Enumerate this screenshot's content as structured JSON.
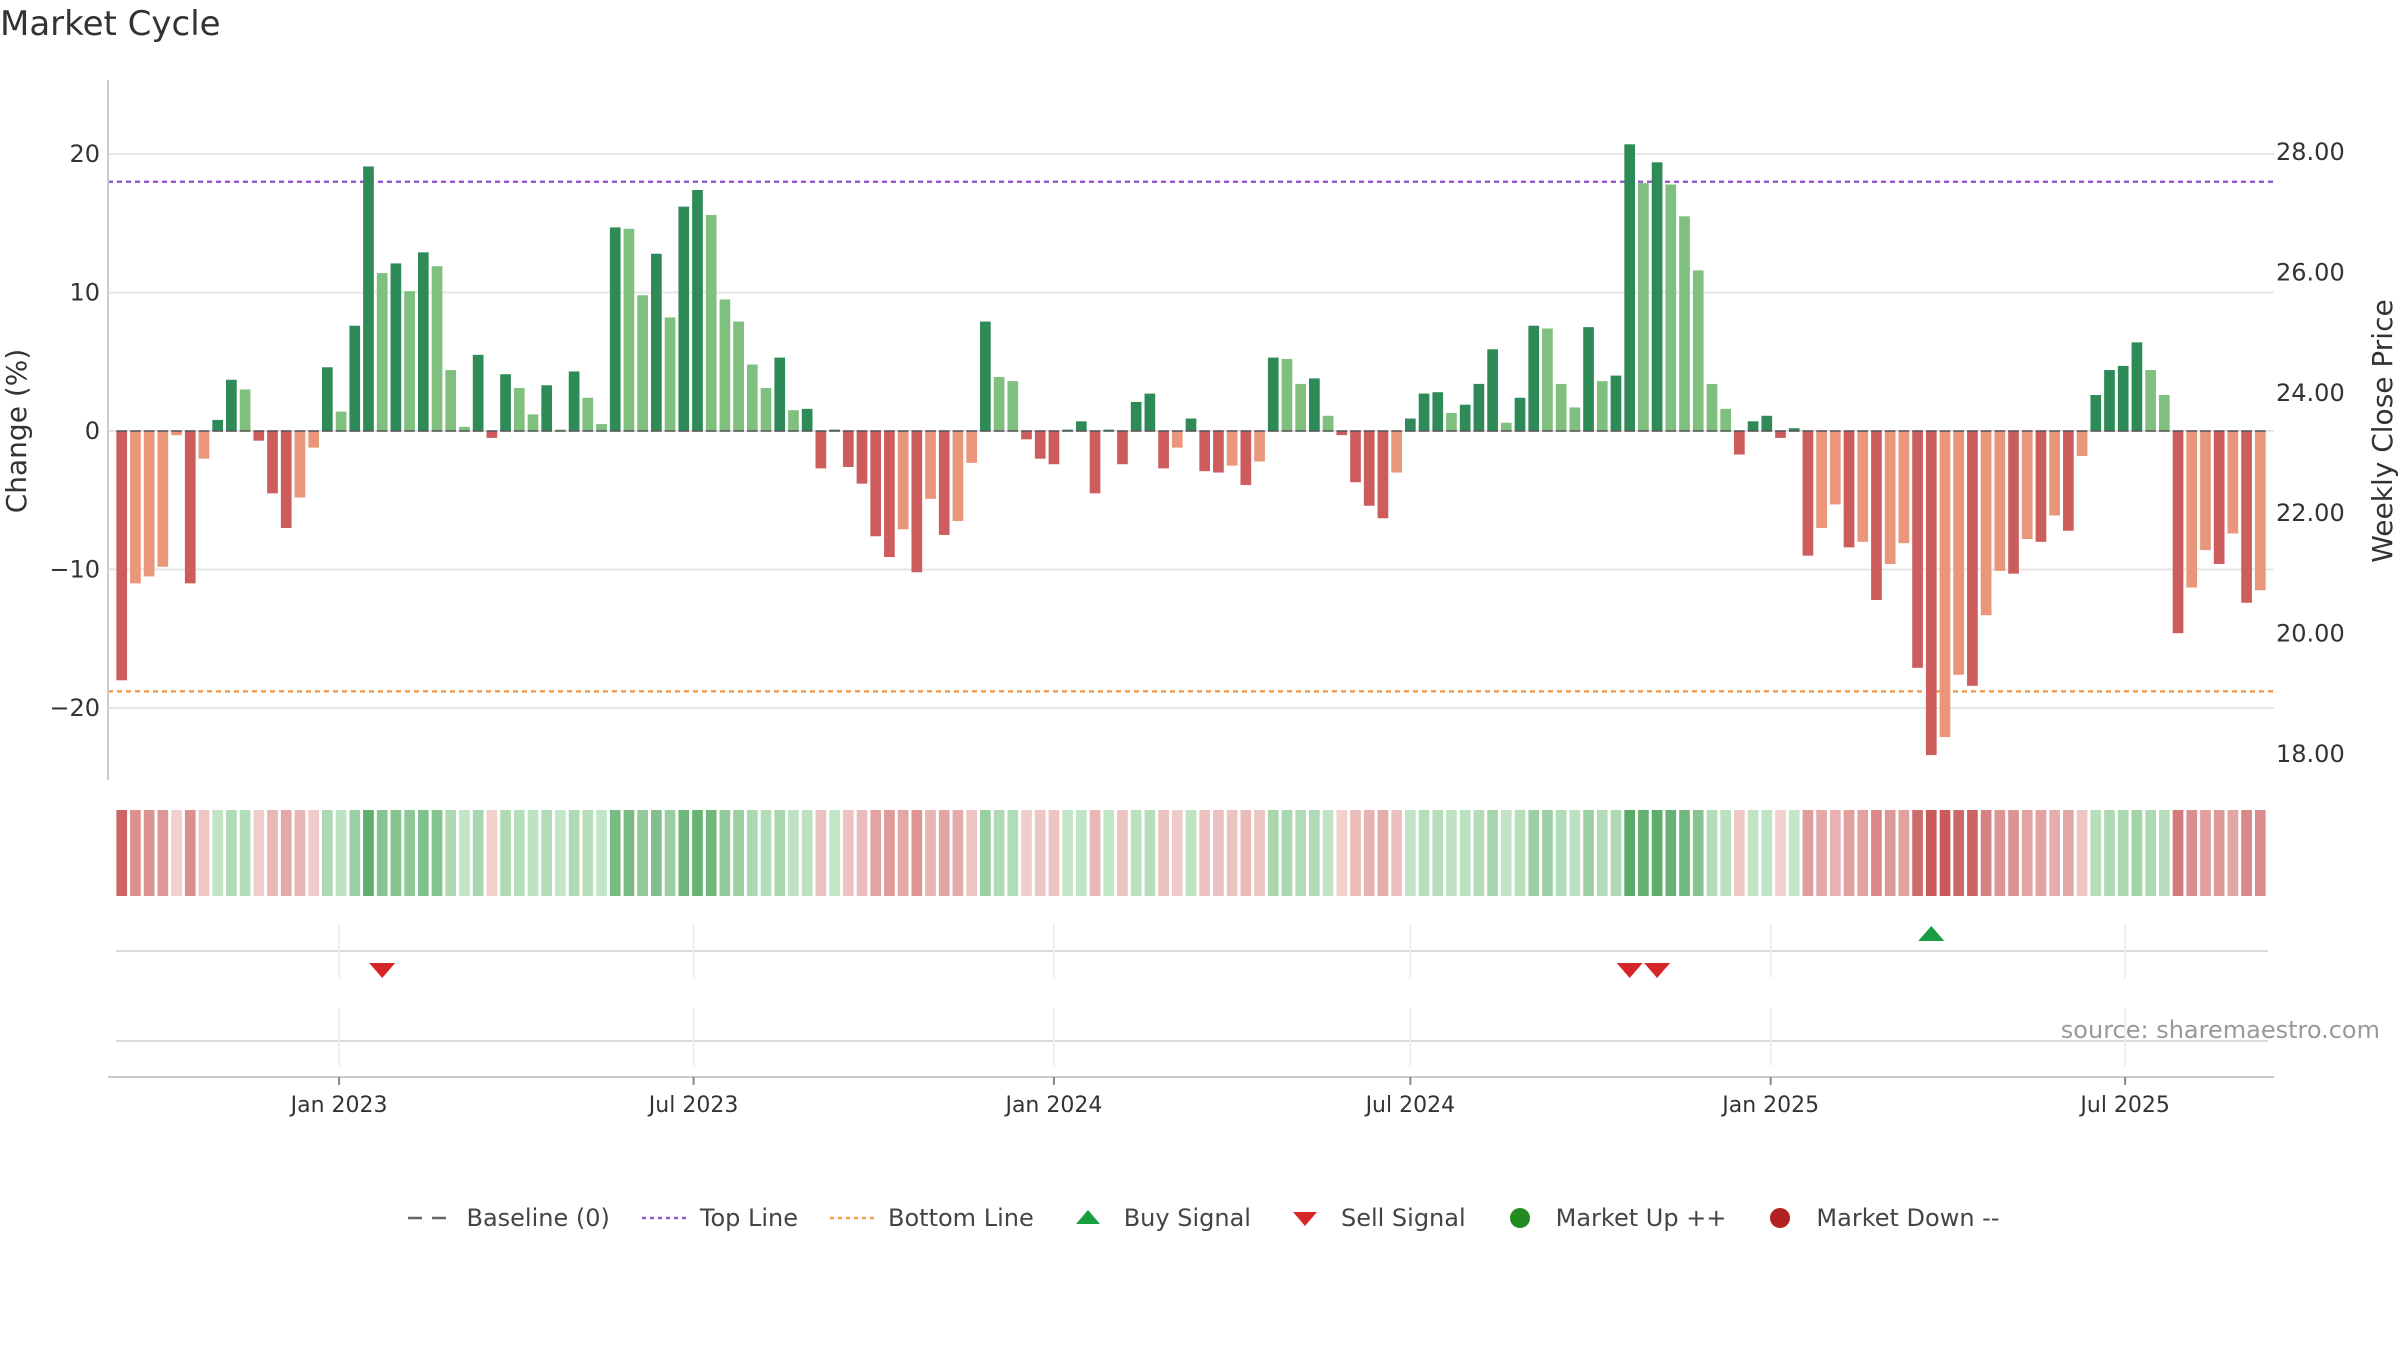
{
  "chart_data": {
    "type": "bar",
    "title": "Market Cycle",
    "ylabel": "Change (%)",
    "y2label": "Weekly Close Price",
    "ylim": [
      -25,
      25
    ],
    "y2lim": [
      17.5,
      29.3
    ],
    "yticks": [
      -20,
      -10,
      0,
      10,
      20
    ],
    "yticklabels": [
      "−20",
      "−10",
      "0",
      "10",
      "20"
    ],
    "y2ticks": [
      18,
      20,
      22,
      24,
      26,
      28
    ],
    "y2ticklabels": [
      "18.00",
      "20.00",
      "22.00",
      "24.00",
      "26.00",
      "28.00"
    ],
    "top_line": 18,
    "bottom_line": -18.8,
    "x_start": "2022-09-05",
    "x_end": "2025-09-15",
    "week_start": "2022-09-12",
    "xticks": [
      "2023-01-01",
      "2023-07-01",
      "2024-01-01",
      "2024-07-01",
      "2025-01-01",
      "2025-07-01"
    ],
    "xticklabels": [
      "Jan 2023",
      "Jul 2023",
      "Jan 2024",
      "Jul 2024",
      "Jan 2025",
      "Jul 2025"
    ],
    "values": [
      -18,
      -11,
      -10.5,
      -9.8,
      -0.3,
      -11,
      -2,
      0.8,
      3.7,
      3,
      -0.7,
      -4.5,
      -7,
      -4.8,
      -1.2,
      4.6,
      1.4,
      7.6,
      19.1,
      11.4,
      12.1,
      10.1,
      12.9,
      11.9,
      4.4,
      0.3,
      5.5,
      -0.5,
      4.1,
      3.1,
      1.2,
      3.3,
      0.1,
      4.3,
      2.4,
      0.5,
      14.7,
      14.6,
      9.8,
      12.8,
      8.2,
      16.2,
      17.4,
      15.6,
      9.5,
      7.9,
      4.8,
      3.1,
      5.3,
      1.5,
      1.6,
      -2.7,
      0.1,
      -2.6,
      -3.8,
      -7.6,
      -9.1,
      -7.1,
      -10.2,
      -4.9,
      -7.5,
      -6.5,
      -2.3,
      7.9,
      3.9,
      3.6,
      -0.6,
      -2,
      -2.4,
      0.1,
      0.7,
      -4.5,
      0.1,
      -2.4,
      2.1,
      2.7,
      -2.7,
      -1.2,
      0.9,
      -2.9,
      -3,
      -2.5,
      -3.9,
      -2.2,
      5.3,
      5.2,
      3.4,
      3.8,
      1.1,
      -0.3,
      -3.7,
      -5.4,
      -6.3,
      -3,
      0.9,
      2.7,
      2.8,
      1.3,
      1.9,
      3.4,
      5.9,
      0.6,
      2.4,
      7.6,
      7.4,
      3.4,
      1.7,
      7.5,
      3.6,
      4,
      20.7,
      17.9,
      19.4,
      17.8,
      15.5,
      11.6,
      3.4,
      1.6,
      -1.7,
      0.7,
      1.1,
      -0.5,
      0.2,
      -9,
      -7,
      -5.3,
      -8.4,
      -8,
      -12.2,
      -9.6,
      -8.1,
      -17.1,
      -23.4,
      -22.1,
      -17.6,
      -18.4,
      -13.3,
      -10.1,
      -10.3,
      -7.8,
      -8,
      -6.1,
      -7.2,
      -1.8,
      2.6,
      4.4,
      4.7,
      6.4,
      4.4,
      2.6,
      -14.6,
      -11.3,
      -8.6,
      -9.6,
      -7.4,
      -12.4,
      -11.5
    ],
    "heat_band": {
      "up_strong": "#5aab68",
      "up_light": "#c5e6c8",
      "down_strong": "#c85a5a",
      "down_light": "#f2d2d0"
    },
    "signals": {
      "sell_weeks": [
        19,
        110,
        112
      ],
      "buy_weeks": [
        132
      ],
      "sell_color": "#d62728",
      "buy_color": "#1a9c40"
    },
    "colors": {
      "up_dark": "#2e8b57",
      "up_light": "#7fc07f",
      "down_dark": "#cd5c5c",
      "down_light": "#e9967a",
      "top_line": "#9b59d0",
      "bottom_line": "#f0a050",
      "grid": "#e6e6e6",
      "axis": "#cccccc"
    }
  },
  "page": {
    "title": "Market Cycle",
    "source": "source: sharemaestro.com"
  },
  "legend": [
    {
      "name": "baseline-legend",
      "label": "Baseline (0)",
      "kind": "dash",
      "color": "#666666"
    },
    {
      "name": "top-line-legend",
      "label": "Top Line",
      "kind": "dot",
      "color": "#9b59d0"
    },
    {
      "name": "bottom-line-legend",
      "label": "Bottom Line",
      "kind": "dot",
      "color": "#f0a050"
    },
    {
      "name": "buy-signal-legend",
      "label": "Buy Signal",
      "kind": "tri-up",
      "color": "#1a9c40"
    },
    {
      "name": "sell-signal-legend",
      "label": "Sell Signal",
      "kind": "tri-down",
      "color": "#d62728"
    },
    {
      "name": "market-up-legend",
      "label": "Market Up ++",
      "kind": "circle",
      "color": "#228b22"
    },
    {
      "name": "market-down-legend",
      "label": "Market Down --",
      "kind": "circle",
      "color": "#b22222"
    }
  ]
}
